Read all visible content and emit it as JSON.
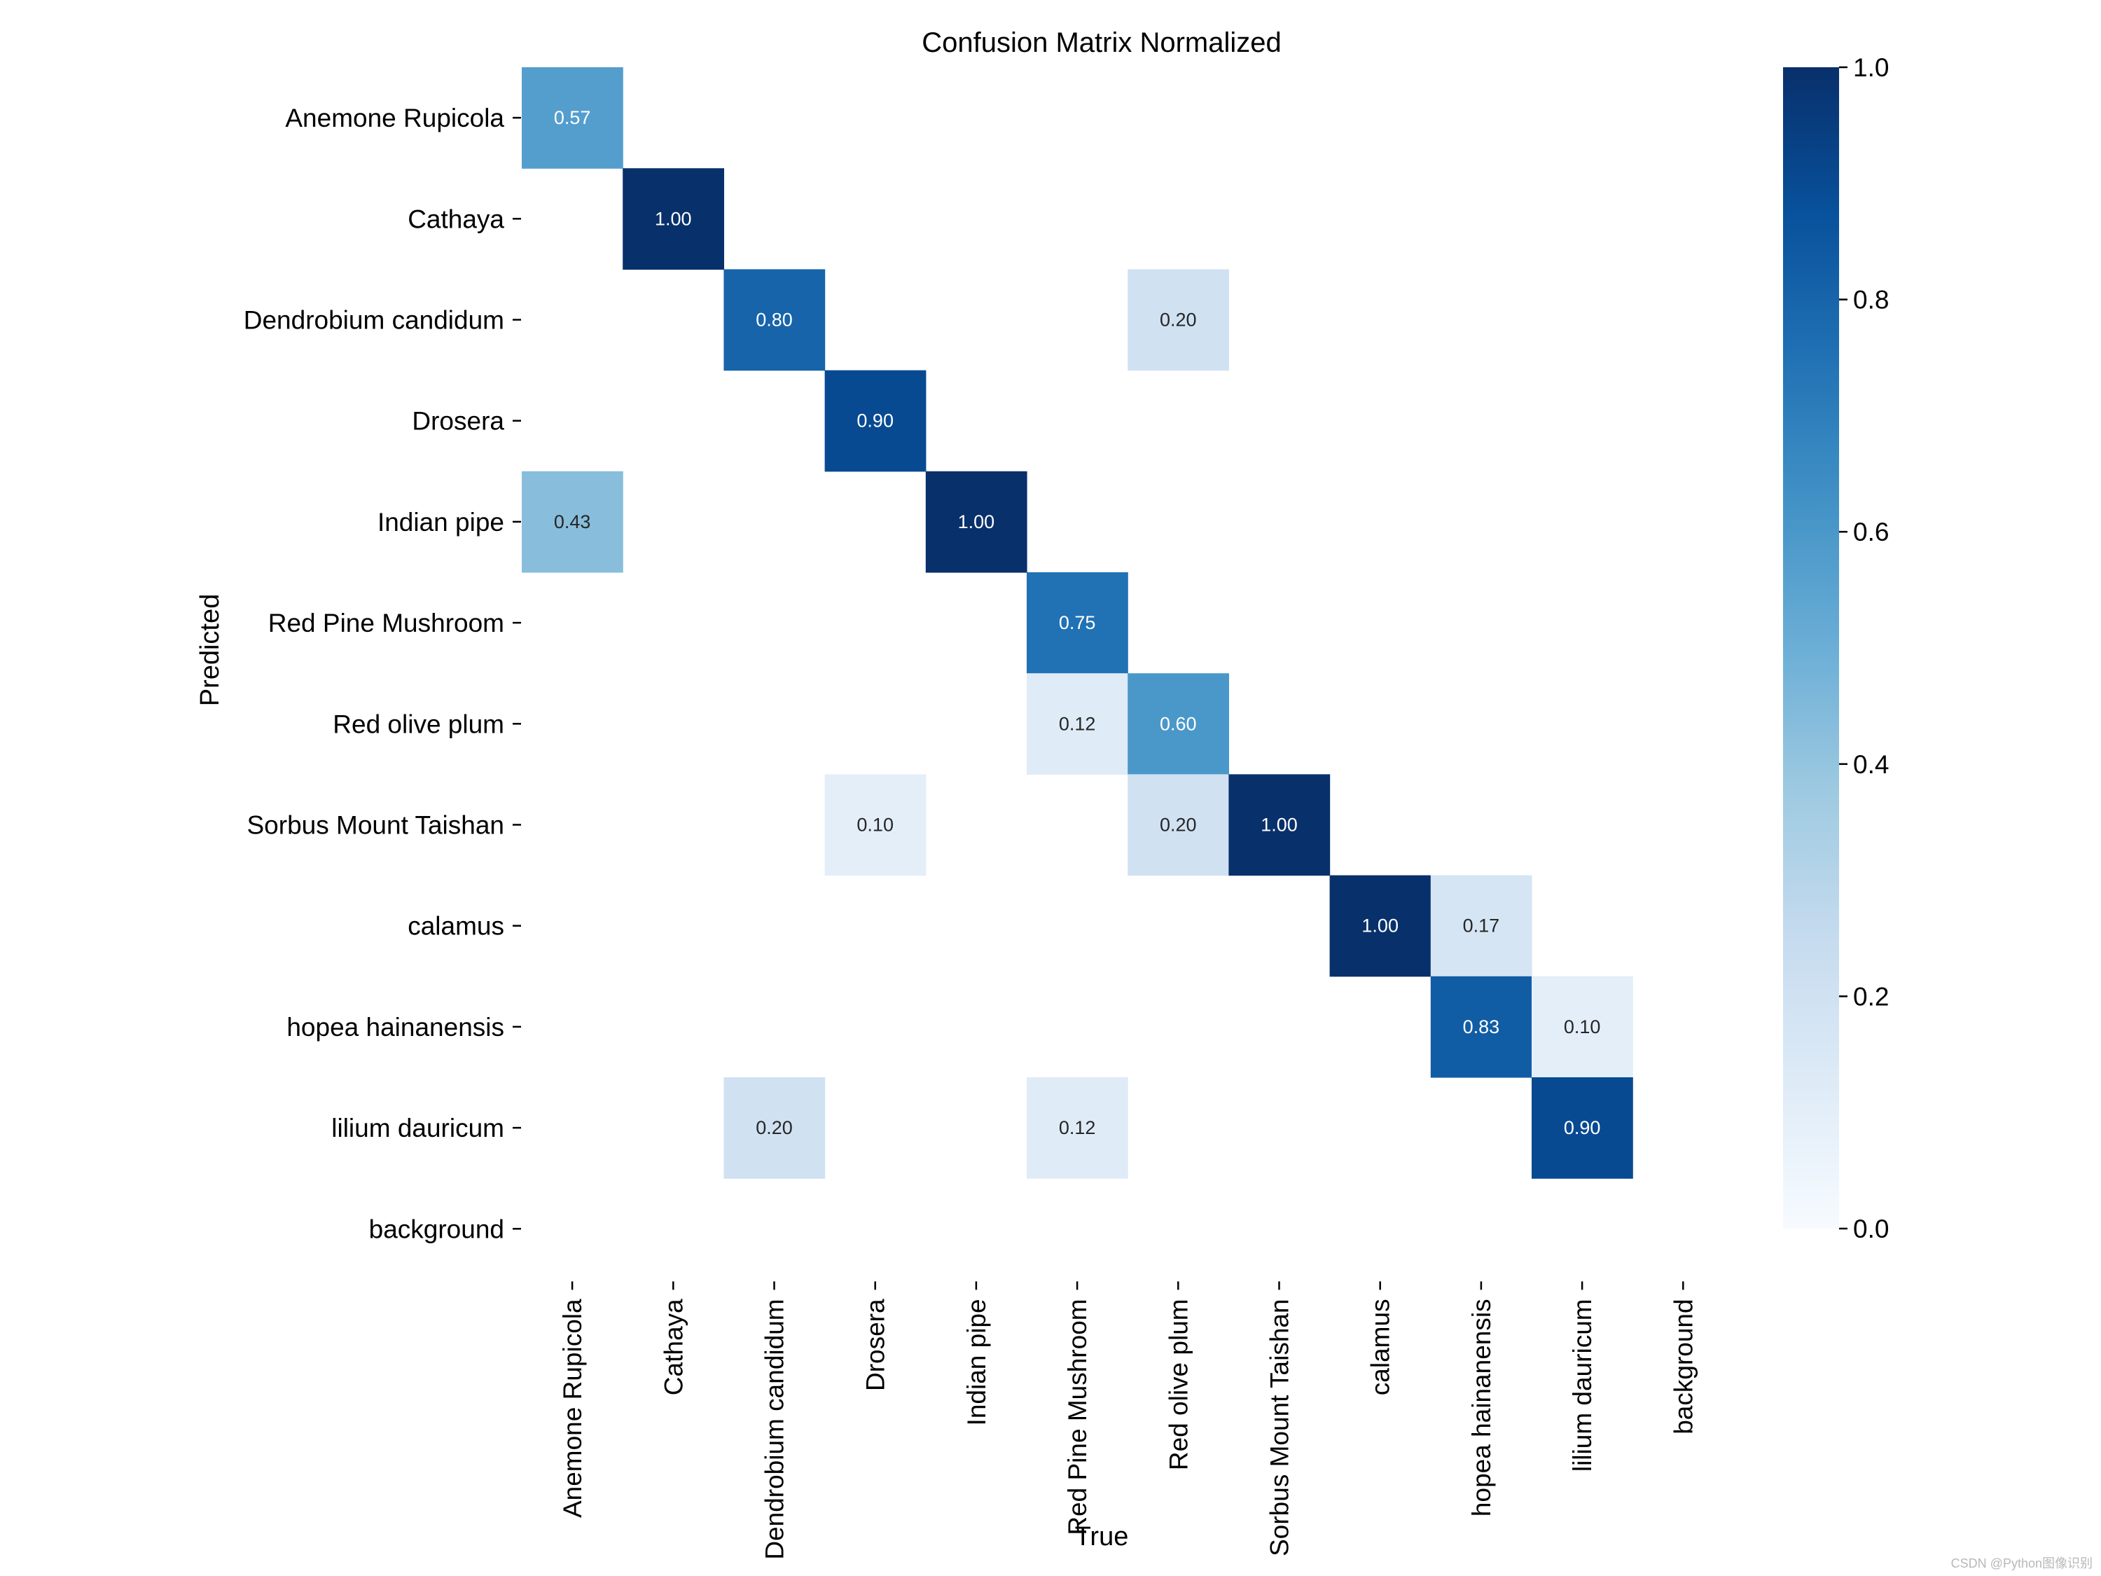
{
  "chart_data": {
    "type": "heatmap",
    "title": "Confusion Matrix Normalized",
    "xlabel": "True",
    "ylabel": "Predicted",
    "x_categories": [
      "Anemone Rupicola",
      "Cathaya",
      "Dendrobium candidum",
      "Drosera",
      "Indian pipe",
      "Red Pine Mushroom",
      "Red olive plum",
      "Sorbus Mount Taishan",
      "calamus",
      "hopea hainanensis",
      "lilium dauricum",
      "background"
    ],
    "y_categories": [
      "Anemone Rupicola",
      "Cathaya",
      "Dendrobium candidum",
      "Drosera",
      "Indian pipe",
      "Red Pine Mushroom",
      "Red olive plum",
      "Sorbus Mount Taishan",
      "calamus",
      "hopea hainanensis",
      "lilium dauricum",
      "background"
    ],
    "cells": [
      {
        "row": 0,
        "col": 0,
        "value": 0.57,
        "label": "0.57"
      },
      {
        "row": 1,
        "col": 1,
        "value": 1.0,
        "label": "1.00"
      },
      {
        "row": 2,
        "col": 2,
        "value": 0.8,
        "label": "0.80"
      },
      {
        "row": 2,
        "col": 6,
        "value": 0.2,
        "label": "0.20"
      },
      {
        "row": 3,
        "col": 3,
        "value": 0.9,
        "label": "0.90"
      },
      {
        "row": 4,
        "col": 0,
        "value": 0.43,
        "label": "0.43"
      },
      {
        "row": 4,
        "col": 4,
        "value": 1.0,
        "label": "1.00"
      },
      {
        "row": 5,
        "col": 5,
        "value": 0.75,
        "label": "0.75"
      },
      {
        "row": 6,
        "col": 5,
        "value": 0.12,
        "label": "0.12"
      },
      {
        "row": 6,
        "col": 6,
        "value": 0.6,
        "label": "0.60"
      },
      {
        "row": 7,
        "col": 3,
        "value": 0.1,
        "label": "0.10"
      },
      {
        "row": 7,
        "col": 6,
        "value": 0.2,
        "label": "0.20"
      },
      {
        "row": 7,
        "col": 7,
        "value": 1.0,
        "label": "1.00"
      },
      {
        "row": 8,
        "col": 8,
        "value": 1.0,
        "label": "1.00"
      },
      {
        "row": 8,
        "col": 9,
        "value": 0.17,
        "label": "0.17"
      },
      {
        "row": 9,
        "col": 9,
        "value": 0.83,
        "label": "0.83"
      },
      {
        "row": 9,
        "col": 10,
        "value": 0.1,
        "label": "0.10"
      },
      {
        "row": 10,
        "col": 2,
        "value": 0.2,
        "label": "0.20"
      },
      {
        "row": 10,
        "col": 5,
        "value": 0.12,
        "label": "0.12"
      },
      {
        "row": 10,
        "col": 10,
        "value": 0.9,
        "label": "0.90"
      }
    ],
    "colorbar": {
      "cmap": "Blues",
      "range": [
        0.0,
        1.0
      ],
      "ticks": [
        0.0,
        0.2,
        0.4,
        0.6,
        0.8,
        1.0
      ],
      "tick_labels": [
        "0.0",
        "0.2",
        "0.4",
        "0.6",
        "0.8",
        "1.0"
      ]
    },
    "grid": false,
    "legend": "colorbar-right"
  },
  "watermark": "CSDN @Python图像识别"
}
